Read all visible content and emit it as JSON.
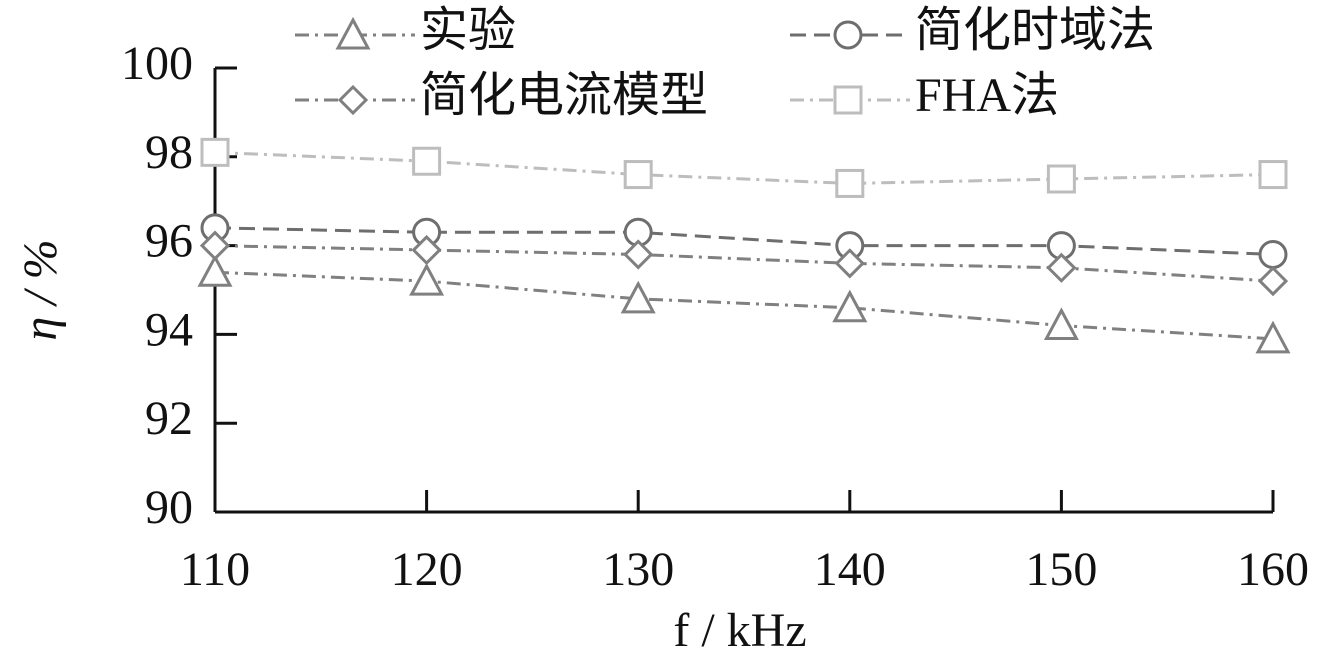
{
  "chart_data": {
    "type": "line",
    "x_label": "f / kHz",
    "y_label": "η / %",
    "x": [
      110,
      120,
      130,
      140,
      150,
      160
    ],
    "xlim": [
      110,
      160
    ],
    "xticks": [
      110,
      120,
      130,
      140,
      150,
      160
    ],
    "ylim": [
      90,
      100
    ],
    "yticks": [
      90,
      92,
      94,
      96,
      98,
      100
    ],
    "series": [
      {
        "name": "实验",
        "color": "#808080",
        "marker": "triangle",
        "linestyle": "dashdot",
        "values": [
          95.4,
          95.2,
          94.8,
          94.6,
          94.2,
          93.9
        ]
      },
      {
        "name": "简化时域法",
        "color": "#6e6e6e",
        "marker": "circle",
        "linestyle": "dashed",
        "values": [
          96.4,
          96.3,
          96.3,
          96.0,
          96.0,
          95.8
        ]
      },
      {
        "name": "简化电流模型",
        "color": "#808080",
        "marker": "diamond",
        "linestyle": "dashdot",
        "values": [
          96.0,
          95.9,
          95.8,
          95.6,
          95.5,
          95.2
        ]
      },
      {
        "name": "FHA法",
        "color": "#bdbdbd",
        "marker": "square",
        "linestyle": "dashdot",
        "values": [
          98.1,
          97.9,
          97.6,
          97.4,
          97.5,
          97.6
        ]
      }
    ]
  }
}
